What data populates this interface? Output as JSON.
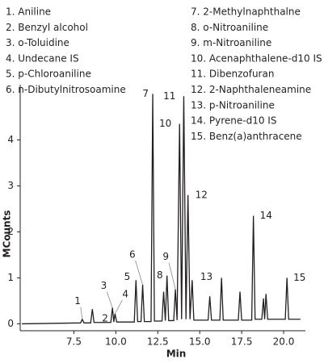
{
  "chart_data": {
    "type": "line",
    "legend": [
      "1. Aniline",
      "2. Benzyl alcohol",
      "3. o-Toluidine",
      "4. Undecane IS",
      "5. p-Chloroaniline",
      "6. n-Dibutylnitrosoamine",
      "7. 2-Methylnaphthalne",
      "8. o-Nitroaniline",
      "9. m-Nitroaniline",
      "10. Acenaphthalene-d10 IS",
      "11. Dibenzofuran",
      "12. 2-Naphthaleneamine",
      "13. p-Nitroaniline",
      "14. Pyrene-d10 IS",
      "15. Benz(a)anthracene"
    ],
    "x_label": "Min",
    "y_label": "MCounts",
    "color": "#231f20",
    "x": [
      4.4,
      7.9,
      8.0,
      8.1,
      8.5,
      8.6,
      8.7,
      9.7,
      9.8,
      9.88,
      9.95,
      10.05,
      11.1,
      11.2,
      11.3,
      11.5,
      11.6,
      11.7,
      12.1,
      12.2,
      12.3,
      12.75,
      12.85,
      12.95,
      13.05,
      13.15,
      13.45,
      13.55,
      13.65,
      13.8,
      13.92,
      14.05,
      14.18,
      14.3,
      14.42,
      14.55,
      14.65,
      15.5,
      15.6,
      15.7,
      16.2,
      16.3,
      16.4,
      17.3,
      17.4,
      17.5,
      18.1,
      18.2,
      18.3,
      18.7,
      18.8,
      18.87,
      18.95,
      19.05,
      20.1,
      20.2,
      20.3,
      21.0
    ],
    "values": [
      0.0,
      0.02,
      0.1,
      0.02,
      0.02,
      0.32,
      0.03,
      0.03,
      0.35,
      0.04,
      0.22,
      0.04,
      0.04,
      0.95,
      0.05,
      0.05,
      0.85,
      0.05,
      0.05,
      5.0,
      0.06,
      0.06,
      0.7,
      0.07,
      1.05,
      0.07,
      0.07,
      0.75,
      0.08,
      4.35,
      0.1,
      4.95,
      0.1,
      2.8,
      0.1,
      0.95,
      0.08,
      0.08,
      0.6,
      0.08,
      0.08,
      1.0,
      0.08,
      0.08,
      0.7,
      0.08,
      0.08,
      2.35,
      0.1,
      0.1,
      0.55,
      0.1,
      0.65,
      0.1,
      0.1,
      1.0,
      0.1,
      0.1
    ],
    "annotations": [
      {
        "text": "1",
        "x": 8.0,
        "y": 0.1
      },
      {
        "text": "2",
        "x": 8.6,
        "y": 0.32
      },
      {
        "text": "3",
        "x": 9.8,
        "y": 0.35
      },
      {
        "text": "4",
        "x": 9.95,
        "y": 0.22
      },
      {
        "text": "5",
        "x": 11.2,
        "y": 0.95
      },
      {
        "text": "6",
        "x": 11.6,
        "y": 0.85
      },
      {
        "text": "7",
        "x": 12.2,
        "y": 5.0
      },
      {
        "text": "8",
        "x": 13.05,
        "y": 1.05
      },
      {
        "text": "9",
        "x": 13.55,
        "y": 0.75
      },
      {
        "text": "10",
        "x": 13.8,
        "y": 4.35
      },
      {
        "text": "11",
        "x": 14.05,
        "y": 4.95
      },
      {
        "text": "12",
        "x": 14.3,
        "y": 2.8
      },
      {
        "text": "13",
        "x": 14.55,
        "y": 0.95
      },
      {
        "text": "14",
        "x": 18.2,
        "y": 2.35
      },
      {
        "text": "15",
        "x": 20.2,
        "y": 1.0
      }
    ],
    "xlim": [
      4.3,
      21.3
    ],
    "xticks": [
      7.5,
      {
        "value": 10,
        "label": "10.0"
      },
      12.5,
      {
        "value": 15,
        "label": "15.0"
      },
      17.5,
      {
        "value": 20,
        "label": "20.0"
      }
    ],
    "ylim": [
      -0.15,
      5.2
    ],
    "yticks": [
      0,
      1,
      2,
      3,
      4
    ]
  }
}
